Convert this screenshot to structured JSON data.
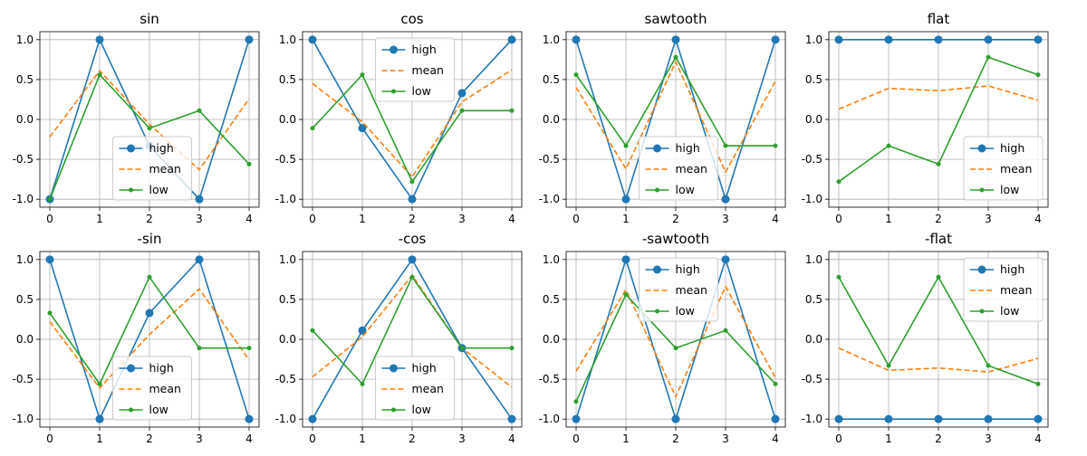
{
  "series_style": {
    "high": {
      "label": "high",
      "color": "#1f77b4",
      "dash": "solid",
      "marker": "large-circle"
    },
    "mean": {
      "label": "mean",
      "color": "#ff7f0e",
      "dash": "dashed",
      "marker": "none"
    },
    "low": {
      "label": "low",
      "color": "#2ca02c",
      "dash": "solid",
      "marker": "small-circle"
    }
  },
  "chart_data": [
    {
      "type": "line",
      "title": "sin",
      "x": [
        0,
        1,
        2,
        3,
        4
      ],
      "ylim": [
        -1.1,
        1.1
      ],
      "yticks": [
        "1.0",
        "0.5",
        "0.0",
        "-0.5",
        "-1.0"
      ],
      "xticks": [
        "0",
        "1",
        "2",
        "3",
        "4"
      ],
      "grid": true,
      "legend": "lower-center",
      "series": [
        {
          "name": "high",
          "values": [
            -1.0,
            1.0,
            -0.33,
            -1.0,
            1.0
          ]
        },
        {
          "name": "mean",
          "values": [
            -0.22,
            0.61,
            -0.06,
            -0.63,
            0.26
          ]
        },
        {
          "name": "low",
          "values": [
            -1.0,
            0.56,
            -0.11,
            0.11,
            -0.56
          ]
        }
      ]
    },
    {
      "type": "line",
      "title": "cos",
      "x": [
        0,
        1,
        2,
        3,
        4
      ],
      "ylim": [
        -1.1,
        1.1
      ],
      "yticks": [
        "1.0",
        "0.5",
        "0.0",
        "-0.5",
        "-1.0"
      ],
      "xticks": [
        "0",
        "1",
        "2",
        "3",
        "4"
      ],
      "grid": true,
      "legend": "upper-center",
      "series": [
        {
          "name": "high",
          "values": [
            1.0,
            -0.11,
            -1.0,
            0.33,
            1.0
          ]
        },
        {
          "name": "mean",
          "values": [
            0.45,
            -0.03,
            -0.72,
            0.22,
            0.62
          ]
        },
        {
          "name": "low",
          "values": [
            -0.11,
            0.56,
            -0.78,
            0.11,
            0.11
          ]
        }
      ]
    },
    {
      "type": "line",
      "title": "sawtooth",
      "x": [
        0,
        1,
        2,
        3,
        4
      ],
      "ylim": [
        -1.1,
        1.1
      ],
      "yticks": [
        "1.0",
        "0.5",
        "0.0",
        "-0.5",
        "-1.0"
      ],
      "xticks": [
        "0",
        "1",
        "2",
        "3",
        "4"
      ],
      "grid": true,
      "legend": "lower-center",
      "series": [
        {
          "name": "high",
          "values": [
            1.0,
            -1.0,
            1.0,
            -1.0,
            1.0
          ]
        },
        {
          "name": "mean",
          "values": [
            0.4,
            -0.62,
            0.72,
            -0.66,
            0.48
          ]
        },
        {
          "name": "low",
          "values": [
            0.56,
            -0.33,
            0.78,
            -0.33,
            -0.33
          ]
        }
      ]
    },
    {
      "type": "line",
      "title": "flat",
      "x": [
        0,
        1,
        2,
        3,
        4
      ],
      "ylim": [
        -1.1,
        1.1
      ],
      "yticks": [
        "1.0",
        "0.5",
        "0.0",
        "-0.5",
        "-1.0"
      ],
      "xticks": [
        "0",
        "1",
        "2",
        "3",
        "4"
      ],
      "grid": true,
      "legend": "lower-right",
      "series": [
        {
          "name": "high",
          "values": [
            1.0,
            1.0,
            1.0,
            1.0,
            1.0
          ]
        },
        {
          "name": "mean",
          "values": [
            0.13,
            0.39,
            0.36,
            0.42,
            0.24
          ]
        },
        {
          "name": "low",
          "values": [
            -0.78,
            -0.33,
            -0.56,
            0.78,
            0.56
          ]
        }
      ]
    },
    {
      "type": "line",
      "title": "-sin",
      "x": [
        0,
        1,
        2,
        3,
        4
      ],
      "ylim": [
        -1.1,
        1.1
      ],
      "yticks": [
        "1.0",
        "0.5",
        "0.0",
        "-0.5",
        "-1.0"
      ],
      "xticks": [
        "0",
        "1",
        "2",
        "3",
        "4"
      ],
      "grid": true,
      "legend": "lower-center",
      "series": [
        {
          "name": "high",
          "values": [
            1.0,
            -1.0,
            0.33,
            1.0,
            -1.0
          ]
        },
        {
          "name": "mean",
          "values": [
            0.22,
            -0.61,
            0.06,
            0.63,
            -0.26
          ]
        },
        {
          "name": "low",
          "values": [
            0.33,
            -0.56,
            0.78,
            -0.11,
            -0.11
          ]
        }
      ]
    },
    {
      "type": "line",
      "title": "-cos",
      "x": [
        0,
        1,
        2,
        3,
        4
      ],
      "ylim": [
        -1.1,
        1.1
      ],
      "yticks": [
        "1.0",
        "0.5",
        "0.0",
        "-0.5",
        "-1.0"
      ],
      "xticks": [
        "0",
        "1",
        "2",
        "3",
        "4"
      ],
      "grid": true,
      "legend": "lower-center",
      "series": [
        {
          "name": "high",
          "values": [
            -1.0,
            0.11,
            1.0,
            -0.11,
            -1.0
          ]
        },
        {
          "name": "mean",
          "values": [
            -0.47,
            0.03,
            0.8,
            -0.11,
            -0.6
          ]
        },
        {
          "name": "low",
          "values": [
            0.11,
            -0.56,
            0.78,
            -0.11,
            -0.11
          ]
        }
      ]
    },
    {
      "type": "line",
      "title": "-sawtooth",
      "x": [
        0,
        1,
        2,
        3,
        4
      ],
      "ylim": [
        -1.1,
        1.1
      ],
      "yticks": [
        "1.0",
        "0.5",
        "0.0",
        "-0.5",
        "-1.0"
      ],
      "xticks": [
        "0",
        "1",
        "2",
        "3",
        "4"
      ],
      "grid": true,
      "legend": "upper-center",
      "series": [
        {
          "name": "high",
          "values": [
            -1.0,
            1.0,
            -1.0,
            1.0,
            -1.0
          ]
        },
        {
          "name": "mean",
          "values": [
            -0.4,
            0.62,
            -0.72,
            0.66,
            -0.48
          ]
        },
        {
          "name": "low",
          "values": [
            -0.78,
            0.56,
            -0.11,
            0.11,
            -0.56
          ]
        }
      ]
    },
    {
      "type": "line",
      "title": "-flat",
      "x": [
        0,
        1,
        2,
        3,
        4
      ],
      "ylim": [
        -1.1,
        1.1
      ],
      "yticks": [
        "1.0",
        "0.5",
        "0.0",
        "-0.5",
        "-1.0"
      ],
      "xticks": [
        "0",
        "1",
        "2",
        "3",
        "4"
      ],
      "grid": true,
      "legend": "upper-right",
      "series": [
        {
          "name": "high",
          "values": [
            -1.0,
            -1.0,
            -1.0,
            -1.0,
            -1.0
          ]
        },
        {
          "name": "mean",
          "values": [
            -0.11,
            -0.39,
            -0.36,
            -0.41,
            -0.24
          ]
        },
        {
          "name": "low",
          "values": [
            0.78,
            -0.33,
            0.78,
            -0.33,
            -0.56
          ]
        }
      ]
    }
  ]
}
